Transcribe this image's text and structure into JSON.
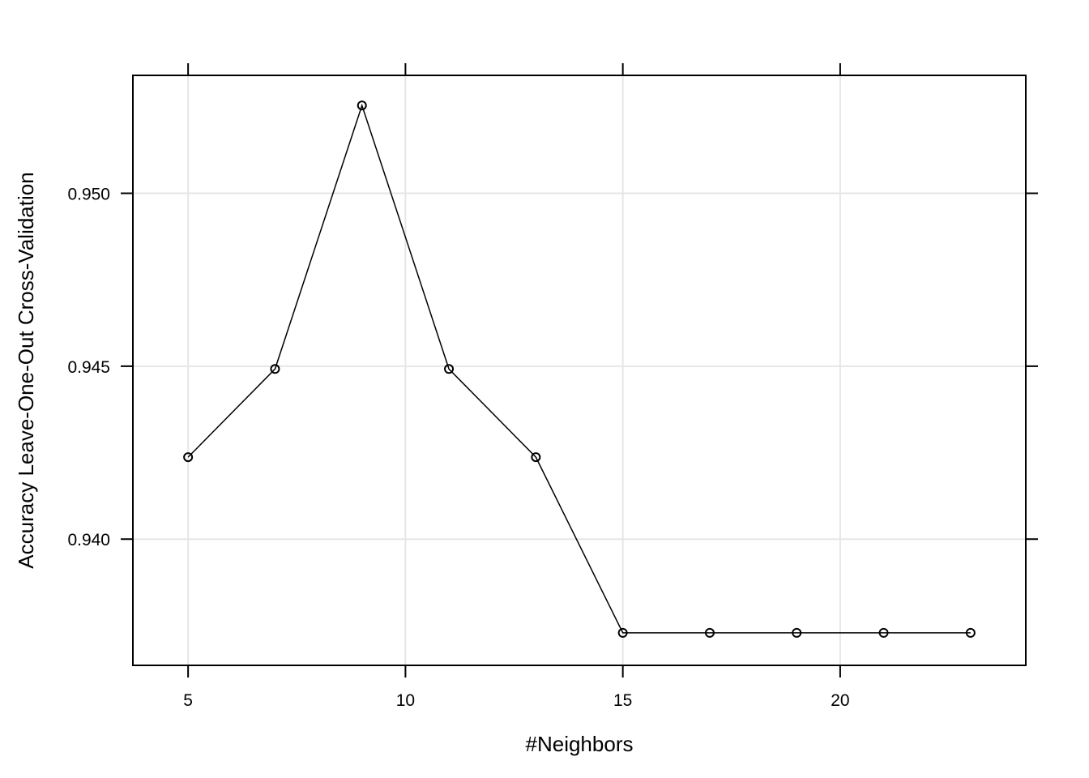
{
  "chart_data": {
    "type": "line",
    "xlabel": "#Neighbors",
    "ylabel": "Accuracy Leave-One-Out Cross-Validation",
    "xlim": [
      3.73,
      24.27
    ],
    "ylim": [
      0.93635,
      0.95341
    ],
    "x_ticks": [
      5,
      10,
      15,
      20
    ],
    "x_tick_labels": [
      "5",
      "10",
      "15",
      "20"
    ],
    "y_ticks": [
      0.94,
      0.945,
      0.95
    ],
    "y_tick_labels": [
      "0.940",
      "0.945",
      "0.950"
    ],
    "grid": true,
    "series": [
      {
        "x": [
          5,
          7,
          9,
          11,
          13,
          15,
          17,
          19,
          21,
          23
        ],
        "y": [
          0.94237,
          0.94492,
          0.95254,
          0.94492,
          0.94237,
          0.93729,
          0.93729,
          0.93729,
          0.93729,
          0.93729
        ],
        "marker": "open-circle",
        "color": "#000000"
      }
    ]
  }
}
